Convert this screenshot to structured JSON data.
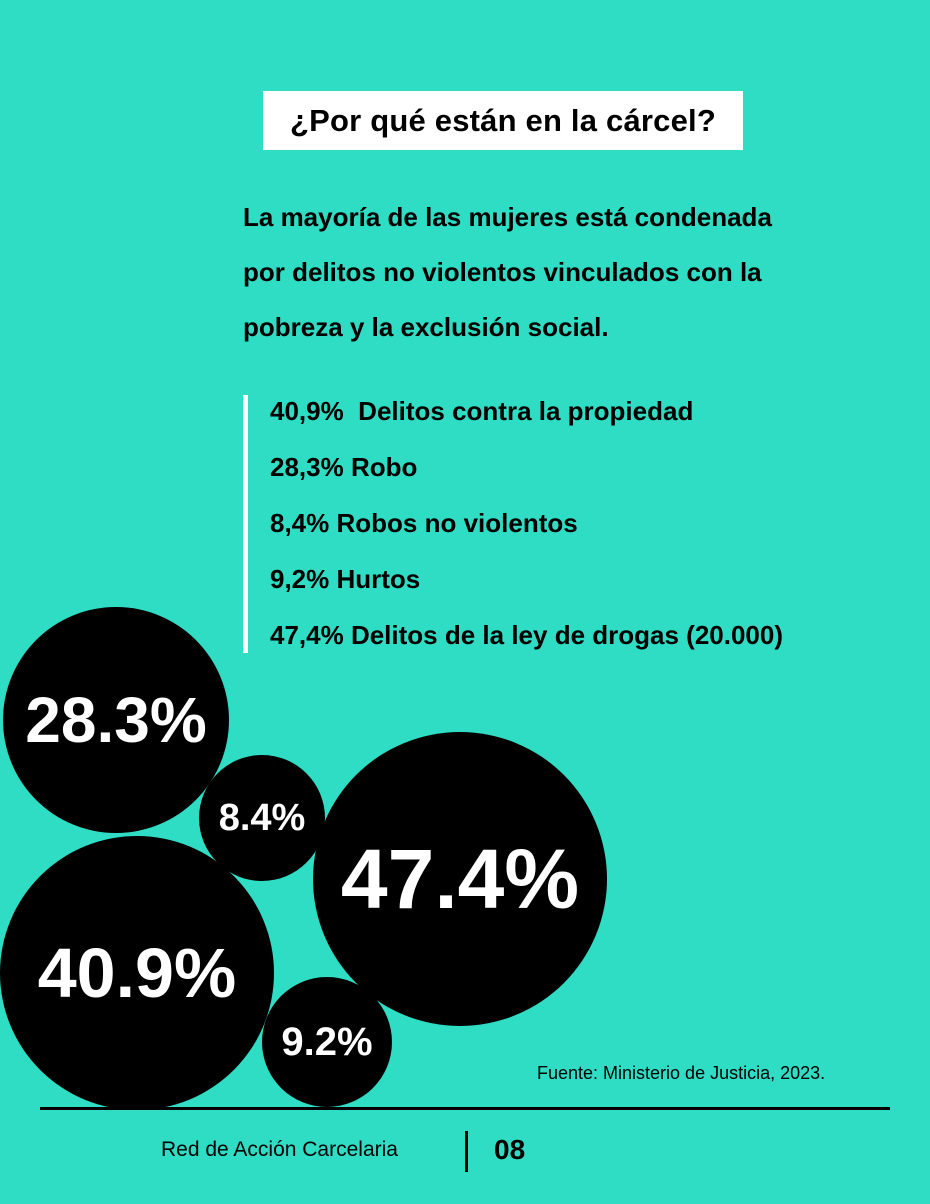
{
  "title": "¿Por qué están en la cárcel?",
  "intro_lines": [
    "La mayoría de las mujeres está condenada",
    "por delitos no violentos vinculados con la",
    "pobreza y la exclusión social."
  ],
  "stats": [
    "40,9%  Delitos contra la propiedad",
    "28,3% Robo",
    "8,4% Robos no violentos",
    "9,2% Hurtos",
    "47,4% Delitos de la ley de drogas (20.000)"
  ],
  "bubbles": [
    {
      "label": "28.3%",
      "value": 28.3
    },
    {
      "label": "8.4%",
      "value": 8.4
    },
    {
      "label": "47.4%",
      "value": 47.4
    },
    {
      "label": "40.9%",
      "value": 40.9
    },
    {
      "label": "9.2%",
      "value": 9.2
    }
  ],
  "source": "Fuente: Ministerio de Justicia, 2023.",
  "footer": {
    "organization": "Red de Acción Carcelaria",
    "page_number": "08"
  },
  "colors": {
    "background": "#2fdcc4",
    "bubble": "#000000",
    "bubble_text": "#ffffff",
    "title_box": "#ffffff"
  }
}
